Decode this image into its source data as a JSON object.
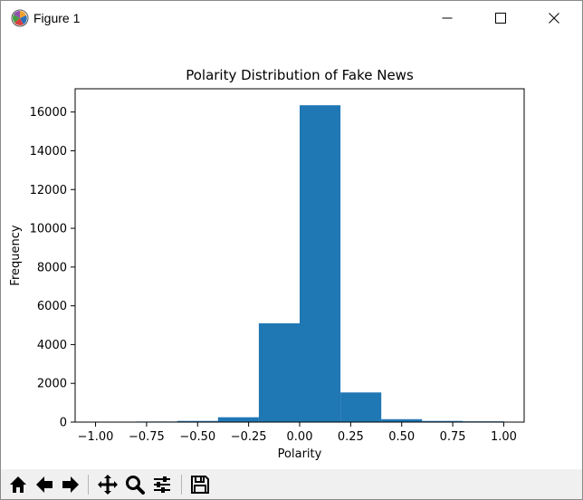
{
  "window": {
    "title": "Figure 1",
    "icon": "matplotlib-icon",
    "controls": [
      "minimize-icon",
      "maximize-icon",
      "close-icon"
    ]
  },
  "toolbar": {
    "buttons": [
      "home-icon",
      "back-arrow-icon",
      "forward-arrow-icon",
      "pan-icon",
      "zoom-icon",
      "subplots-config-icon",
      "save-icon"
    ]
  },
  "chart_data": {
    "type": "bar",
    "title": "Polarity Distribution of Fake News",
    "xlabel": "Polarity",
    "ylabel": "Frequency",
    "bin_edges": [
      -1.0,
      -0.8,
      -0.6,
      -0.4,
      -0.2,
      0.0,
      0.2,
      0.4,
      0.6,
      0.8,
      1.0
    ],
    "values": [
      20,
      30,
      60,
      250,
      5100,
      16350,
      1530,
      150,
      60,
      40
    ],
    "xlim": [
      -1.1,
      1.1
    ],
    "ylim": [
      0,
      17200
    ],
    "xticks": [
      "−1.00",
      "−0.75",
      "−0.50",
      "−0.25",
      "0.00",
      "0.25",
      "0.50",
      "0.75",
      "1.00"
    ],
    "xtick_values": [
      -1.0,
      -0.75,
      -0.5,
      -0.25,
      0.0,
      0.25,
      0.5,
      0.75,
      1.0
    ],
    "yticks": [
      "0",
      "2000",
      "4000",
      "6000",
      "8000",
      "10000",
      "12000",
      "14000",
      "16000"
    ],
    "ytick_values": [
      0,
      2000,
      4000,
      6000,
      8000,
      10000,
      12000,
      14000,
      16000
    ],
    "bar_color": "#1f77b4",
    "grid": false,
    "legend": "none"
  }
}
